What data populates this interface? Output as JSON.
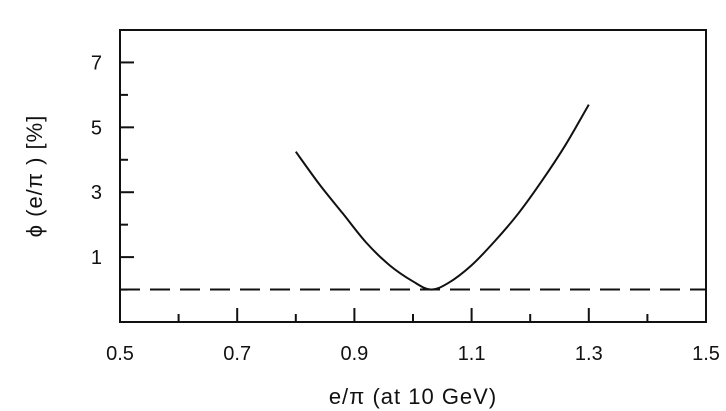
{
  "chart_data": {
    "type": "line",
    "title": "",
    "xlabel": "e/π (at 10 GeV)",
    "ylabel": "ϕ (e/π ) [%]",
    "xlim": [
      0.5,
      1.5
    ],
    "ylim": [
      -1,
      8
    ],
    "x_ticks": [
      0.5,
      0.7,
      0.9,
      1.1,
      1.3,
      1.5
    ],
    "x_tick_labels": [
      "0.5",
      "0.7",
      "0.9",
      "1.1",
      "1.3",
      "1.5"
    ],
    "y_ticks": [
      1,
      3,
      5,
      7
    ],
    "y_tick_labels": [
      "1",
      "3",
      "5",
      "7"
    ],
    "grid": false,
    "series": [
      {
        "style": "solid",
        "color": "#111111",
        "x": [
          0.8,
          0.84,
          0.88,
          0.92,
          0.96,
          1.0,
          1.03,
          1.06,
          1.1,
          1.14,
          1.18,
          1.22,
          1.26,
          1.3
        ],
        "y": [
          4.25,
          3.25,
          2.35,
          1.45,
          0.75,
          0.25,
          0.0,
          0.2,
          0.75,
          1.5,
          2.35,
          3.35,
          4.45,
          5.7
        ]
      },
      {
        "style": "dashed",
        "color": "#111111",
        "x": [
          0.5,
          1.5
        ],
        "y": [
          0.0,
          0.0
        ]
      }
    ]
  }
}
